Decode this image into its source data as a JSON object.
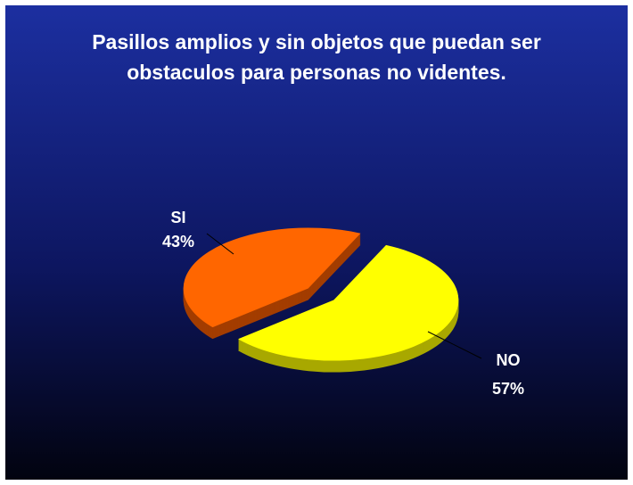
{
  "chart_data": {
    "type": "pie",
    "title": "Pasillos amplios y sin objetos que puedan ser obstaculos para personas no videntes.",
    "categories": [
      "SI",
      "NO"
    ],
    "values": [
      43,
      57
    ],
    "value_labels": [
      "43%",
      "57%"
    ],
    "colors": [
      "#ff6600",
      "#ffff00"
    ]
  }
}
